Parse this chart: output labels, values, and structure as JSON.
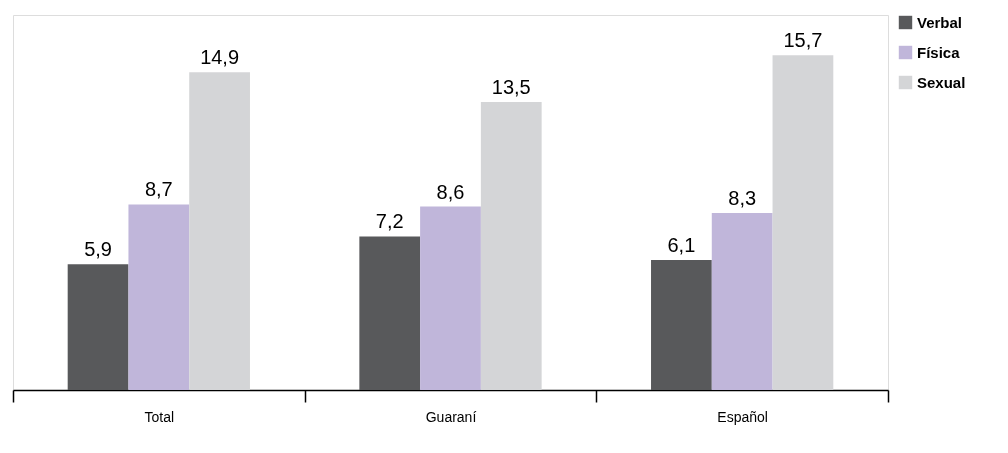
{
  "chart_data": {
    "type": "bar",
    "categories": [
      "Total",
      "Guaraní",
      "Español"
    ],
    "series": [
      {
        "name": "Verbal",
        "color": "#58595b",
        "values": [
          5.9,
          7.2,
          6.1
        ],
        "value_labels": [
          "5,9",
          "7,2",
          "6,1"
        ]
      },
      {
        "name": "Física",
        "color": "#c0b6da",
        "values": [
          8.7,
          8.6,
          8.3
        ],
        "value_labels": [
          "8,7",
          "8,6",
          "8,3"
        ]
      },
      {
        "name": "Sexual",
        "color": "#d4d5d7",
        "values": [
          14.9,
          13.5,
          15.7
        ],
        "value_labels": [
          "14,9",
          "13,5",
          "15,7"
        ]
      }
    ],
    "legend": "top right",
    "grid": false
  }
}
